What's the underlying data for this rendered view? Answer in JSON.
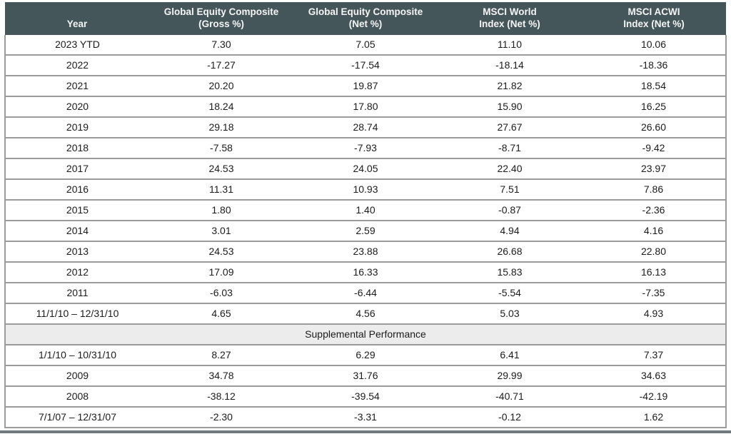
{
  "colors": {
    "page_bg": "#FFFFFF",
    "header_bg": "#44565A",
    "header_text": "#F5F5F5",
    "body_text": "#1B1B1B",
    "grid_line": "#9B9B9B",
    "band_bg": "#ECECEC",
    "rule": "#707A7C"
  },
  "table": {
    "columns": [
      {
        "lines": [
          "Year"
        ]
      },
      {
        "lines": [
          "Global Equity Composite",
          "(Gross %)"
        ]
      },
      {
        "lines": [
          "Global Equity Composite",
          "(Net %)"
        ]
      },
      {
        "lines": [
          "MSCI World",
          "Index (Net %)"
        ]
      },
      {
        "lines": [
          "MSCI ACWI",
          "Index (Net %)"
        ]
      }
    ],
    "main_rows": [
      [
        "2023 YTD",
        "7.30",
        "7.05",
        "11.10",
        "10.06"
      ],
      [
        "2022",
        "-17.27",
        "-17.54",
        "-18.14",
        "-18.36"
      ],
      [
        "2021",
        "20.20",
        "19.87",
        "21.82",
        "18.54"
      ],
      [
        "2020",
        "18.24",
        "17.80",
        "15.90",
        "16.25"
      ],
      [
        "2019",
        "29.18",
        "28.74",
        "27.67",
        "26.60"
      ],
      [
        "2018",
        "-7.58",
        "-7.93",
        "-8.71",
        "-9.42"
      ],
      [
        "2017",
        "24.53",
        "24.05",
        "22.40",
        "23.97"
      ],
      [
        "2016",
        "11.31",
        "10.93",
        "7.51",
        "7.86"
      ],
      [
        "2015",
        "1.80",
        "1.40",
        "-0.87",
        "-2.36"
      ],
      [
        "2014",
        "3.01",
        "2.59",
        "4.94",
        "4.16"
      ],
      [
        "2013",
        "24.53",
        "23.88",
        "26.68",
        "22.80"
      ],
      [
        "2012",
        "17.09",
        "16.33",
        "15.83",
        "16.13"
      ],
      [
        "2011",
        "-6.03",
        "-6.44",
        "-5.54",
        "-7.35"
      ],
      [
        "11/1/10 – 12/31/10",
        "4.65",
        "4.56",
        "5.03",
        "4.93"
      ]
    ],
    "supplemental_label": "Supplemental Performance",
    "supplemental_rows": [
      [
        "1/1/10 – 10/31/10",
        "8.27",
        "6.29",
        "6.41",
        "7.37"
      ],
      [
        "2009",
        "34.78",
        "31.76",
        "29.99",
        "34.63"
      ],
      [
        "2008",
        "-38.12",
        "-39.54",
        "-40.71",
        "-42.19"
      ],
      [
        "7/1/07 – 12/31/07",
        "-2.30",
        "-3.31",
        "-0.12",
        "1.62"
      ]
    ]
  }
}
